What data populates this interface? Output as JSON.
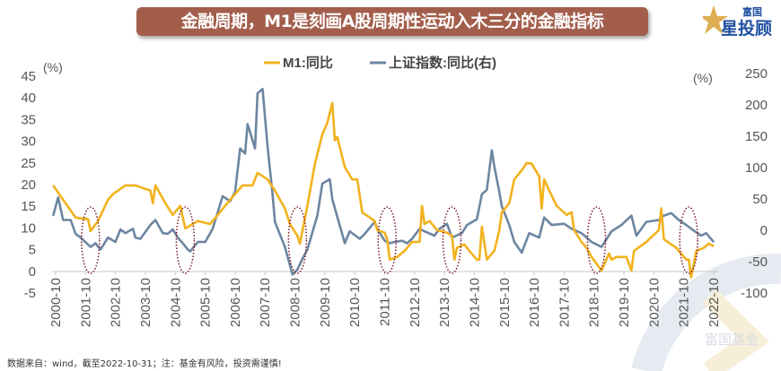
{
  "header": {
    "title": "金融周期，M1是刻画A股周期性运动入木三分的金融指标",
    "logo_top": "富国",
    "logo_bottom": "星投顾"
  },
  "footer": {
    "source": "数据来自：wind，截至2022-10-31；注：基金有风险，投资需谨慎!"
  },
  "watermark": "富国基金",
  "colors": {
    "m1": "#f2b21d",
    "index": "#6d86a0",
    "banner": "#a35e4b",
    "ellipse": "#7a1a2a"
  },
  "chart_data": {
    "type": "line",
    "title": "",
    "legend_position": "top-center",
    "grid": false,
    "left_axis": {
      "unit_label": "(%)",
      "range": [
        -5,
        45
      ],
      "ticks": [
        -5,
        0,
        5,
        10,
        15,
        20,
        25,
        30,
        35,
        40,
        45
      ]
    },
    "right_axis": {
      "unit_label": "(%)",
      "range": [
        -100,
        250
      ],
      "ticks": [
        -100,
        -50,
        0,
        50,
        100,
        150,
        200,
        250
      ]
    },
    "x_ticks": [
      "2000-10",
      "2001-10",
      "2002-10",
      "2003-10",
      "2004-10",
      "2005-10",
      "2006-10",
      "2007-10",
      "2008-10",
      "2009-10",
      "2010-10",
      "2011-10",
      "2012-10",
      "2013-10",
      "2014-10",
      "2015-10",
      "2016-10",
      "2017-10",
      "2018-10",
      "2019-10",
      "2020-10",
      "2021-10",
      "2022-10"
    ],
    "series": [
      {
        "name": "M1:同比",
        "axis": "left",
        "points": [
          [
            "2000-09",
            19.6
          ],
          [
            "2001-01",
            16.3
          ],
          [
            "2001-06",
            12.2
          ],
          [
            "2001-11",
            11.8
          ],
          [
            "2001-12",
            9.1
          ],
          [
            "2002-03",
            11.4
          ],
          [
            "2002-07",
            16.3
          ],
          [
            "2002-09",
            17.6
          ],
          [
            "2003-02",
            19.6
          ],
          [
            "2003-06",
            19.6
          ],
          [
            "2003-12",
            18.4
          ],
          [
            "2004-01",
            15.5
          ],
          [
            "2004-02",
            19.6
          ],
          [
            "2004-06",
            15.5
          ],
          [
            "2004-09",
            12.8
          ],
          [
            "2004-12",
            14.9
          ],
          [
            "2005-02",
            9.7
          ],
          [
            "2005-07",
            11.4
          ],
          [
            "2005-12",
            10.7
          ],
          [
            "2006-03",
            12.8
          ],
          [
            "2006-08",
            16.3
          ],
          [
            "2007-01",
            19.6
          ],
          [
            "2007-05",
            19.6
          ],
          [
            "2007-07",
            22.5
          ],
          [
            "2007-11",
            21.0
          ],
          [
            "2008-02",
            18.4
          ],
          [
            "2008-06",
            14.3
          ],
          [
            "2008-08",
            10.7
          ],
          [
            "2008-11",
            8.0
          ],
          [
            "2008-12",
            6.2
          ],
          [
            "2009-03",
            14.9
          ],
          [
            "2009-06",
            24.6
          ],
          [
            "2009-09",
            31.4
          ],
          [
            "2009-11",
            34.0
          ],
          [
            "2010-01",
            38.6
          ],
          [
            "2010-02",
            30.0
          ],
          [
            "2010-03",
            30.8
          ],
          [
            "2010-06",
            23.8
          ],
          [
            "2010-09",
            21.0
          ],
          [
            "2010-11",
            21.0
          ],
          [
            "2011-01",
            13.4
          ],
          [
            "2011-06",
            11.4
          ],
          [
            "2011-07",
            9.3
          ],
          [
            "2011-10",
            8.7
          ],
          [
            "2011-11",
            7.2
          ],
          [
            "2011-12",
            2.5
          ],
          [
            "2012-03",
            3.1
          ],
          [
            "2012-06",
            4.5
          ],
          [
            "2012-09",
            6.6
          ],
          [
            "2012-12",
            6.6
          ],
          [
            "2013-01",
            14.9
          ],
          [
            "2013-02",
            10.7
          ],
          [
            "2013-04",
            11.4
          ],
          [
            "2013-07",
            9.3
          ],
          [
            "2013-11",
            8.7
          ],
          [
            "2014-01",
            8.0
          ],
          [
            "2014-02",
            2.5
          ],
          [
            "2014-03",
            5.2
          ],
          [
            "2014-06",
            6.0
          ],
          [
            "2014-08",
            4.5
          ],
          [
            "2014-11",
            2.5
          ],
          [
            "2014-12",
            2.5
          ],
          [
            "2015-01",
            10.1
          ],
          [
            "2015-03",
            2.5
          ],
          [
            "2015-05",
            3.9
          ],
          [
            "2015-06",
            4.5
          ],
          [
            "2015-08",
            9.3
          ],
          [
            "2015-09",
            13.4
          ],
          [
            "2015-12",
            15.5
          ],
          [
            "2016-02",
            21.0
          ],
          [
            "2016-05",
            23.1
          ],
          [
            "2016-07",
            24.8
          ],
          [
            "2016-09",
            24.6
          ],
          [
            "2016-12",
            21.7
          ],
          [
            "2017-01",
            14.3
          ],
          [
            "2017-02",
            21.0
          ],
          [
            "2017-04",
            18.4
          ],
          [
            "2017-07",
            14.9
          ],
          [
            "2017-11",
            12.8
          ],
          [
            "2018-01",
            13.4
          ],
          [
            "2018-02",
            9.3
          ],
          [
            "2018-05",
            6.6
          ],
          [
            "2018-07",
            5.2
          ],
          [
            "2018-09",
            3.1
          ],
          [
            "2019-01",
            0.0
          ],
          [
            "2019-04",
            3.9
          ],
          [
            "2019-05",
            2.5
          ],
          [
            "2019-07",
            3.1
          ],
          [
            "2019-11",
            3.1
          ],
          [
            "2020-01",
            0.0
          ],
          [
            "2020-02",
            4.5
          ],
          [
            "2020-07",
            6.6
          ],
          [
            "2020-12",
            9.3
          ],
          [
            "2021-01",
            14.3
          ],
          [
            "2021-02",
            7.2
          ],
          [
            "2021-07",
            5.2
          ],
          [
            "2021-11",
            2.5
          ],
          [
            "2021-12",
            2.5
          ],
          [
            "2022-01",
            -1.6
          ],
          [
            "2022-03",
            4.5
          ],
          [
            "2022-06",
            5.2
          ],
          [
            "2022-08",
            6.2
          ],
          [
            "2022-10",
            5.6
          ]
        ]
      },
      {
        "name": "上证指数:同比(右)",
        "axis": "right",
        "points": [
          [
            "2000-09",
            22
          ],
          [
            "2000-11",
            51
          ],
          [
            "2001-01",
            15
          ],
          [
            "2001-04",
            15
          ],
          [
            "2001-06",
            -7
          ],
          [
            "2001-08",
            -13
          ],
          [
            "2001-12",
            -28
          ],
          [
            "2002-02",
            -22
          ],
          [
            "2002-04",
            -32
          ],
          [
            "2002-07",
            -13
          ],
          [
            "2002-10",
            -20
          ],
          [
            "2002-12",
            0
          ],
          [
            "2003-02",
            -6
          ],
          [
            "2003-05",
            1
          ],
          [
            "2003-06",
            -13
          ],
          [
            "2003-08",
            -15
          ],
          [
            "2003-12",
            7
          ],
          [
            "2004-02",
            15
          ],
          [
            "2004-05",
            -6
          ],
          [
            "2004-07",
            -7
          ],
          [
            "2004-09",
            0
          ],
          [
            "2004-11",
            -13
          ],
          [
            "2005-01",
            -22
          ],
          [
            "2005-03",
            -32
          ],
          [
            "2005-04",
            -35
          ],
          [
            "2005-07",
            -20
          ],
          [
            "2005-10",
            -20
          ],
          [
            "2006-01",
            1
          ],
          [
            "2006-05",
            53
          ],
          [
            "2006-08",
            45
          ],
          [
            "2006-10",
            60
          ],
          [
            "2006-12",
            129
          ],
          [
            "2007-02",
            121
          ],
          [
            "2007-03",
            168
          ],
          [
            "2007-06",
            129
          ],
          [
            "2007-07",
            217
          ],
          [
            "2007-09",
            224
          ],
          [
            "2007-11",
            133
          ],
          [
            "2008-01",
            56
          ],
          [
            "2008-02",
            12
          ],
          [
            "2008-06",
            -28
          ],
          [
            "2008-09",
            -72
          ],
          [
            "2008-11",
            -64
          ],
          [
            "2009-01",
            -47
          ],
          [
            "2009-03",
            -32
          ],
          [
            "2009-07",
            22
          ],
          [
            "2009-09",
            73
          ],
          [
            "2009-12",
            80
          ],
          [
            "2010-01",
            48
          ],
          [
            "2010-06",
            -22
          ],
          [
            "2010-08",
            -3
          ],
          [
            "2010-12",
            -15
          ],
          [
            "2011-02",
            -7
          ],
          [
            "2011-06",
            12
          ],
          [
            "2011-07",
            1
          ],
          [
            "2011-10",
            -18
          ],
          [
            "2011-12",
            -22
          ],
          [
            "2012-02",
            -20
          ],
          [
            "2012-05",
            -18
          ],
          [
            "2012-07",
            -22
          ],
          [
            "2012-09",
            -15
          ],
          [
            "2012-12",
            1
          ],
          [
            "2013-02",
            -3
          ],
          [
            "2013-06",
            -10
          ],
          [
            "2013-08",
            1
          ],
          [
            "2013-11",
            9
          ],
          [
            "2014-01",
            -13
          ],
          [
            "2014-05",
            -6
          ],
          [
            "2014-07",
            7
          ],
          [
            "2014-11",
            16
          ],
          [
            "2015-01",
            56
          ],
          [
            "2015-03",
            63
          ],
          [
            "2015-05",
            126
          ],
          [
            "2015-06",
            100
          ],
          [
            "2015-08",
            60
          ],
          [
            "2015-09",
            37
          ],
          [
            "2015-12",
            7
          ],
          [
            "2016-02",
            -20
          ],
          [
            "2016-05",
            -37
          ],
          [
            "2016-08",
            -6
          ],
          [
            "2016-12",
            -13
          ],
          [
            "2017-02",
            19
          ],
          [
            "2017-05",
            7
          ],
          [
            "2017-10",
            9
          ],
          [
            "2018-01",
            1
          ],
          [
            "2018-05",
            -6
          ],
          [
            "2018-09",
            -20
          ],
          [
            "2019-01",
            -28
          ],
          [
            "2019-05",
            -3
          ],
          [
            "2019-09",
            7
          ],
          [
            "2020-01",
            22
          ],
          [
            "2020-03",
            -10
          ],
          [
            "2020-07",
            12
          ],
          [
            "2020-12",
            15
          ],
          [
            "2021-02",
            22
          ],
          [
            "2021-05",
            26
          ],
          [
            "2021-08",
            15
          ],
          [
            "2021-11",
            7
          ],
          [
            "2022-01",
            1
          ],
          [
            "2022-05",
            -10
          ],
          [
            "2022-07",
            -6
          ],
          [
            "2022-10",
            -20
          ]
        ]
      }
    ],
    "annotations": {
      "type": "dotted-ellipse",
      "centers": [
        "2001-12",
        "2005-02",
        "2008-11",
        "2011-11",
        "2014-01",
        "2018-11",
        "2021-12"
      ]
    }
  }
}
